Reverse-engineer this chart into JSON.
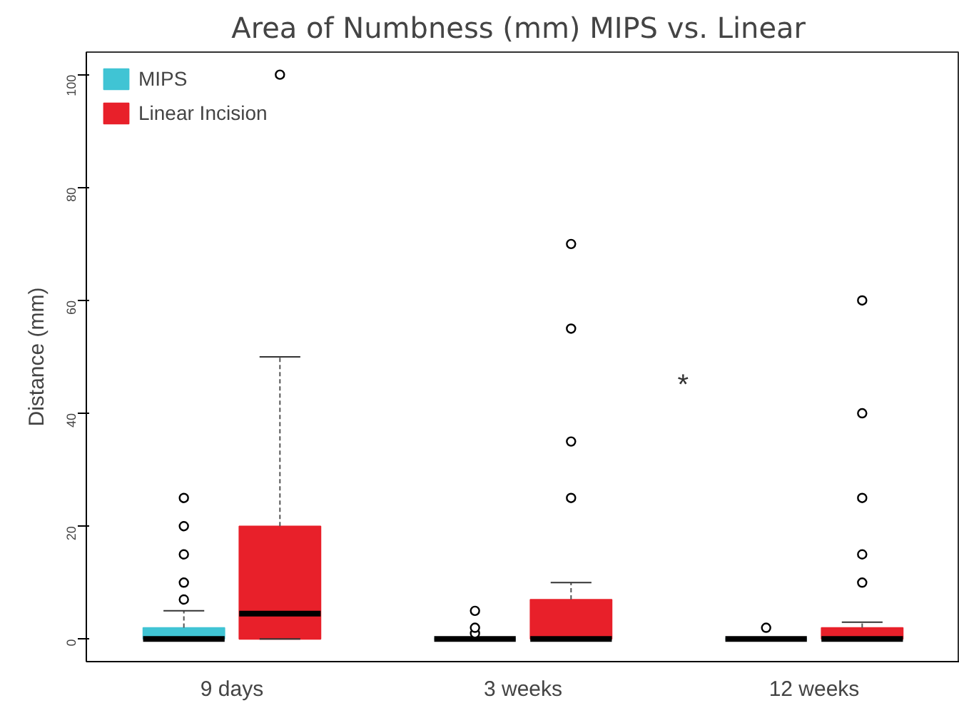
{
  "chart_data": {
    "type": "box",
    "title": "Area of Numbness (mm) MIPS  vs. Linear",
    "ylabel": "Distance (mm)",
    "categories": [
      "9 days",
      "3 weeks",
      "12 weeks"
    ],
    "series": [
      {
        "name": "MIPS",
        "color": "#40c4d4",
        "boxes": [
          {
            "low": 0,
            "q1": 0,
            "median": 0,
            "q3": 2,
            "high": 5,
            "outliers": [
              7,
              10,
              15,
              20,
              25
            ]
          },
          {
            "low": 0,
            "q1": 0,
            "median": 0,
            "q3": 0,
            "high": 0,
            "outliers": [
              1,
              2,
              5
            ]
          },
          {
            "low": 0,
            "q1": 0,
            "median": 0,
            "q3": 0,
            "high": 0,
            "outliers": [
              2
            ]
          }
        ]
      },
      {
        "name": "Linear Incision",
        "color": "#e8202a",
        "boxes": [
          {
            "low": 0,
            "q1": 0,
            "median": 4.5,
            "q3": 20,
            "high": 50,
            "outliers": [
              100
            ]
          },
          {
            "low": 0,
            "q1": 0,
            "median": 0,
            "q3": 7,
            "high": 10,
            "outliers": [
              25,
              35,
              55,
              70
            ]
          },
          {
            "low": 0,
            "q1": 0,
            "median": 0,
            "q3": 2,
            "high": 3,
            "outliers": [
              10,
              15,
              25,
              40,
              60
            ]
          }
        ]
      }
    ],
    "ylim": [
      -4,
      104
    ],
    "yticks": [
      0,
      20,
      40,
      60,
      80,
      100
    ],
    "grid": false,
    "legend": "top left",
    "annotations": [
      "*"
    ]
  }
}
